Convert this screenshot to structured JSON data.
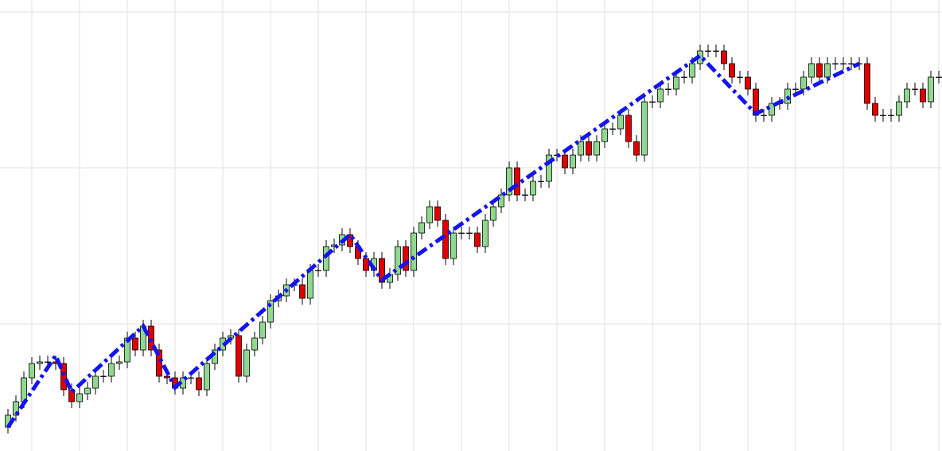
{
  "chart_data": {
    "type": "candlestick",
    "xlim": [
      -1,
      117.4
    ],
    "ylim": [
      0,
      567
    ],
    "xticks": [
      3,
      9,
      15,
      21,
      27,
      33,
      39,
      45,
      51,
      57,
      63,
      69,
      75,
      81,
      87,
      93,
      99,
      105,
      111,
      117
    ],
    "yticks": [
      160,
      356,
      552
    ],
    "grid": true,
    "up_color": "#90d890",
    "down_color": "#e00000",
    "open": [
      30,
      45,
      62,
      92,
      110,
      112,
      112,
      110,
      77,
      62,
      72,
      79,
      94,
      94,
      110,
      112,
      142,
      127,
      157,
      127,
      94,
      92,
      79,
      92,
      92,
      77,
      110,
      127,
      142,
      145,
      94,
      127,
      142,
      162,
      189,
      195,
      209,
      209,
      192,
      227,
      227,
      257,
      259,
      272,
      257,
      242,
      227,
      242,
      212,
      222,
      257,
      227,
      274,
      287,
      307,
      290,
      242,
      274,
      274,
      274,
      257,
      290,
      307,
      322,
      356,
      322,
      322,
      339,
      339,
      372,
      372,
      356,
      372,
      389,
      372,
      389,
      405,
      405,
      422,
      389,
      372,
      439,
      439,
      455,
      455,
      470,
      470,
      487,
      503,
      503,
      503,
      487,
      470,
      470,
      455,
      422,
      422,
      437,
      437,
      455,
      455,
      470,
      487,
      470,
      487,
      487,
      487,
      487,
      487,
      437,
      422,
      422,
      422,
      439,
      455,
      455,
      439,
      470
    ],
    "high": [
      53,
      70,
      100,
      118,
      120,
      120,
      120,
      118,
      85,
      80,
      87,
      102,
      102,
      118,
      120,
      150,
      150,
      165,
      165,
      135,
      102,
      100,
      100,
      100,
      100,
      118,
      135,
      150,
      153,
      153,
      135,
      150,
      170,
      197,
      203,
      217,
      217,
      217,
      235,
      235,
      265,
      267,
      280,
      280,
      265,
      250,
      250,
      250,
      230,
      265,
      265,
      282,
      295,
      315,
      315,
      298,
      282,
      282,
      282,
      282,
      298,
      315,
      330,
      364,
      364,
      330,
      347,
      347,
      380,
      380,
      380,
      380,
      397,
      397,
      397,
      413,
      413,
      430,
      430,
      397,
      447,
      447,
      463,
      463,
      478,
      478,
      495,
      511,
      511,
      511,
      511,
      495,
      478,
      478,
      463,
      430,
      445,
      445,
      463,
      463,
      478,
      495,
      495,
      495,
      495,
      495,
      495,
      495,
      495,
      445,
      430,
      430,
      447,
      463,
      463,
      463,
      478,
      478
    ],
    "low": [
      22,
      37,
      54,
      84,
      102,
      104,
      102,
      69,
      54,
      54,
      64,
      71,
      86,
      86,
      102,
      104,
      119,
      119,
      119,
      86,
      84,
      71,
      71,
      84,
      69,
      69,
      102,
      119,
      134,
      86,
      86,
      119,
      134,
      154,
      181,
      187,
      201,
      184,
      184,
      219,
      219,
      249,
      251,
      249,
      234,
      219,
      219,
      204,
      204,
      214,
      219,
      219,
      266,
      279,
      282,
      234,
      234,
      266,
      266,
      249,
      249,
      282,
      299,
      314,
      314,
      314,
      314,
      331,
      331,
      364,
      348,
      348,
      364,
      364,
      364,
      381,
      397,
      397,
      381,
      364,
      364,
      431,
      431,
      447,
      447,
      462,
      462,
      479,
      495,
      495,
      479,
      462,
      462,
      447,
      414,
      414,
      414,
      429,
      429,
      447,
      447,
      462,
      462,
      462,
      479,
      479,
      479,
      479,
      429,
      414,
      414,
      414,
      414,
      431,
      447,
      431,
      431,
      462
    ],
    "close": [
      45,
      62,
      92,
      110,
      112,
      112,
      110,
      77,
      62,
      72,
      79,
      94,
      94,
      110,
      112,
      142,
      127,
      157,
      127,
      94,
      92,
      79,
      92,
      92,
      77,
      110,
      127,
      142,
      145,
      94,
      127,
      142,
      162,
      189,
      195,
      209,
      209,
      192,
      227,
      227,
      257,
      259,
      272,
      257,
      242,
      227,
      242,
      212,
      222,
      257,
      227,
      274,
      287,
      307,
      290,
      242,
      274,
      274,
      274,
      257,
      290,
      307,
      322,
      356,
      322,
      322,
      339,
      339,
      372,
      372,
      356,
      372,
      389,
      372,
      389,
      405,
      405,
      422,
      389,
      372,
      439,
      439,
      455,
      455,
      470,
      470,
      487,
      503,
      503,
      503,
      487,
      470,
      470,
      455,
      422,
      422,
      437,
      437,
      455,
      455,
      470,
      487,
      470,
      487,
      487,
      487,
      487,
      487,
      437,
      422,
      422,
      422,
      439,
      455,
      455,
      439,
      470,
      470
    ],
    "zigzag": {
      "color": "#1414ee",
      "x": [
        0,
        6,
        8,
        17,
        21,
        43,
        47,
        87,
        94,
        107
      ],
      "values": [
        30,
        120,
        74,
        157,
        80,
        272,
        215,
        497,
        424,
        487
      ]
    }
  }
}
